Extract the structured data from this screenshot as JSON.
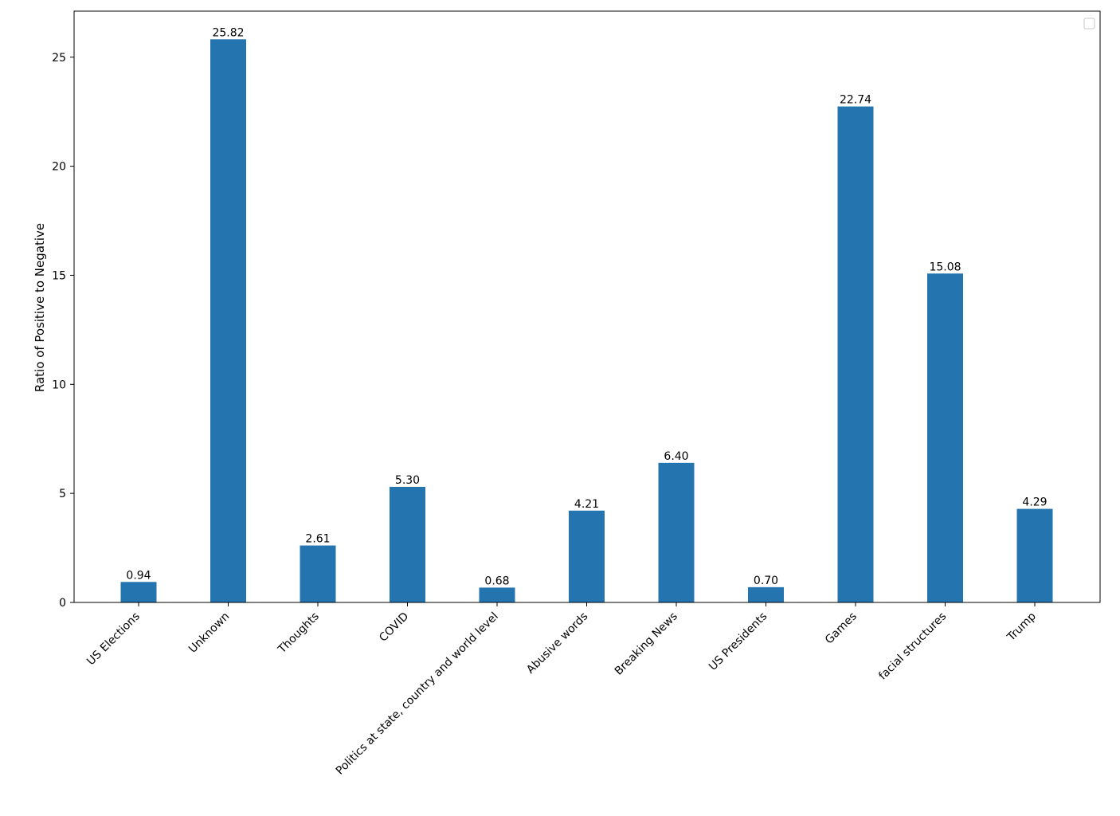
{
  "chart_data": {
    "type": "bar",
    "categories": [
      "US Elections",
      "Unknown",
      "Thoughts",
      "COVID",
      "Politics at state, country and world level",
      "Abusive words",
      "Breaking News",
      "US Presidents",
      "Games",
      "facial structures",
      "Trump"
    ],
    "values": [
      0.94,
      25.82,
      2.61,
      5.3,
      0.68,
      4.21,
      6.4,
      0.7,
      22.74,
      15.08,
      4.29
    ],
    "data_labels": [
      "0.94",
      "25.82",
      "2.61",
      "5.30",
      "0.68",
      "4.21",
      "6.40",
      "0.70",
      "22.74",
      "15.08",
      "4.29"
    ],
    "ylabel": "Ratio of Positive to Negative",
    "xlabel": "",
    "title": "",
    "ylim": [
      0,
      27.11
    ],
    "yticks": [
      0,
      5,
      10,
      15,
      20,
      25
    ],
    "grid": false,
    "legend": {
      "placement": "top-right",
      "entries": []
    },
    "colors": {
      "bar": "#2474b0",
      "axis": "#000000"
    }
  }
}
